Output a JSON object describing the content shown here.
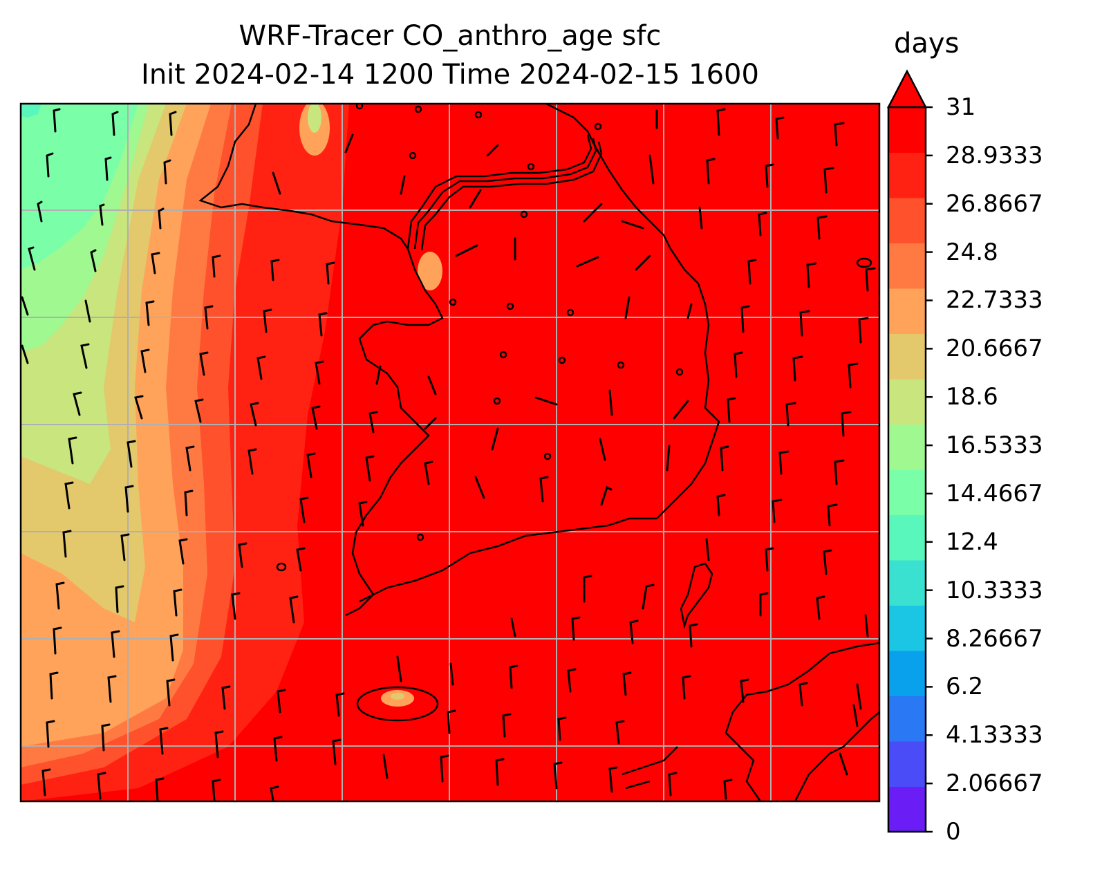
{
  "title": {
    "line1": "WRF-Tracer CO_anthro_age sfc",
    "line2": "Init 2024-02-14 1200 Time 2024-02-15 1600"
  },
  "colorbar": {
    "unit_label": "days",
    "min": 0,
    "max": 31,
    "extend": "max",
    "ticks": [
      "0",
      "2.06667",
      "4.13333",
      "6.2",
      "8.26667",
      "10.3333",
      "12.4",
      "14.4667",
      "16.5333",
      "18.6",
      "20.6667",
      "22.7333",
      "24.8",
      "26.8667",
      "28.9333",
      "31"
    ],
    "colors": [
      "#6a1df5",
      "#4a4cf8",
      "#2a78f4",
      "#0aa1ec",
      "#1ac6e4",
      "#3ae0d0",
      "#5af7bd",
      "#7affa8",
      "#a0f890",
      "#c8e57e",
      "#e3c86c",
      "#ffa25a",
      "#ff7a43",
      "#ff512b",
      "#ff2213",
      "#ff0000"
    ],
    "over_color": "#ff0000"
  },
  "map": {
    "field": "CO_anthro_age",
    "level": "sfc",
    "units": "days",
    "gridlines": true,
    "features": [
      "coastlines",
      "borders",
      "wind-barbs"
    ]
  }
}
